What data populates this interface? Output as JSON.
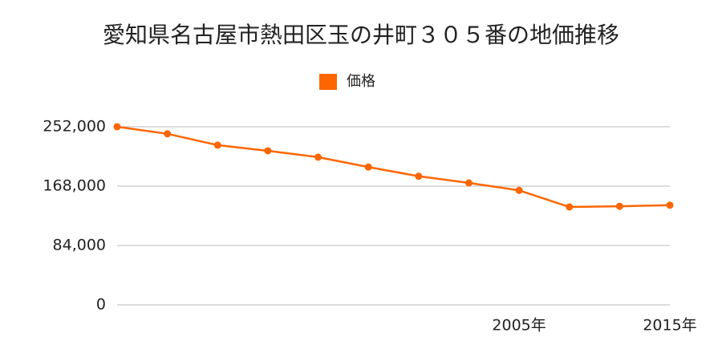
{
  "chart_data": {
    "type": "line",
    "title": "愛知県名古屋市熱田区玉の井町３０５番の地価推移",
    "categories": [
      null,
      null,
      null,
      null,
      null,
      null,
      null,
      null,
      "2005年",
      null,
      null,
      "2015年"
    ],
    "series": [
      {
        "name": "価格",
        "color": "#ff6600",
        "values": [
          252000,
          242000,
          226000,
          218000,
          209000,
          195000,
          182000,
          172500,
          162000,
          138500,
          139500,
          141000
        ]
      }
    ],
    "ylim": [
      0,
      252000
    ],
    "yticks": [
      0,
      {
        "value": 84000,
        "label": "84,000"
      },
      {
        "value": 168000,
        "label": "168,000"
      },
      {
        "value": 252000,
        "label": "252,000"
      }
    ],
    "grid": true,
    "legend": "top"
  }
}
